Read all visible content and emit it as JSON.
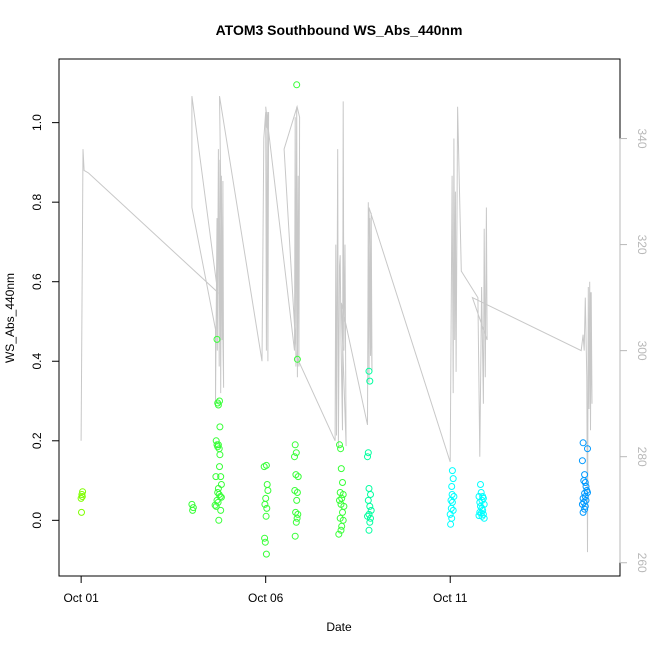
{
  "chart_data": {
    "type": "scatter",
    "title": "ATOM3 Southbound WS_Abs_440nm",
    "xlabel": "Date",
    "ylabel": "WS_Abs_440nm",
    "x_axis": {
      "unit": "days since Oct 01",
      "range": [
        -0.6,
        14.6
      ],
      "ticks": [
        {
          "value": 0,
          "label": "Oct 01"
        },
        {
          "value": 5,
          "label": "Oct 06"
        },
        {
          "value": 10,
          "label": "Oct 11"
        }
      ]
    },
    "y_axis": {
      "range": [
        -0.14,
        1.16
      ],
      "ticks": [
        {
          "value": 0.0,
          "label": "0.0"
        },
        {
          "value": 0.2,
          "label": "0.2"
        },
        {
          "value": 0.4,
          "label": "0.4"
        },
        {
          "value": 0.6,
          "label": "0.6"
        },
        {
          "value": 0.8,
          "label": "0.8"
        },
        {
          "value": 1.0,
          "label": "1.0"
        }
      ]
    },
    "y2_axis": {
      "range": [
        257.5,
        355
      ],
      "ticks": [
        {
          "value": 260,
          "label": "260"
        },
        {
          "value": 280,
          "label": "280"
        },
        {
          "value": 300,
          "label": "300"
        },
        {
          "value": 320,
          "label": "320"
        },
        {
          "value": 340,
          "label": "340"
        }
      ]
    },
    "grid": false,
    "legend": "none",
    "colors": {
      "line": "#c8c8c8",
      "secondary_axis": "#b8b8b8",
      "text": "#000000"
    },
    "series": [
      {
        "type": "scatter",
        "colors": [
          "#7fff00",
          "#38ff38",
          "#00ff9f",
          "#00ffff",
          "#0099ff"
        ],
        "points": [
          [
            0.0,
            0.055,
            0
          ],
          [
            0.02,
            0.065,
            0
          ],
          [
            0.04,
            0.072,
            0
          ],
          [
            0.01,
            0.02,
            0
          ],
          [
            0.03,
            0.06,
            0
          ],
          [
            3.0,
            0.04,
            1
          ],
          [
            3.02,
            0.025,
            1
          ],
          [
            3.04,
            0.032,
            1
          ],
          [
            3.68,
            0.455,
            1
          ],
          [
            3.7,
            0.295,
            1
          ],
          [
            3.72,
            0.29,
            1
          ],
          [
            3.75,
            0.3,
            1
          ],
          [
            3.76,
            0.235,
            1
          ],
          [
            3.66,
            0.2,
            1
          ],
          [
            3.68,
            0.19,
            1
          ],
          [
            3.7,
            0.185,
            1
          ],
          [
            3.72,
            0.19,
            1
          ],
          [
            3.74,
            0.18,
            1
          ],
          [
            3.76,
            0.165,
            1
          ],
          [
            3.75,
            0.135,
            1
          ],
          [
            3.78,
            0.11,
            1
          ],
          [
            3.65,
            0.11,
            1
          ],
          [
            3.8,
            0.09,
            1
          ],
          [
            3.72,
            0.08,
            1
          ],
          [
            3.7,
            0.07,
            1
          ],
          [
            3.74,
            0.065,
            1
          ],
          [
            3.77,
            0.06,
            1
          ],
          [
            3.8,
            0.058,
            1
          ],
          [
            3.68,
            0.05,
            1
          ],
          [
            3.71,
            0.045,
            1
          ],
          [
            3.63,
            0.038,
            1
          ],
          [
            3.66,
            0.035,
            1
          ],
          [
            3.78,
            0.025,
            1
          ],
          [
            3.73,
            0.0,
            1
          ],
          [
            4.96,
            0.135,
            1
          ],
          [
            5.02,
            0.138,
            1
          ],
          [
            5.04,
            0.09,
            1
          ],
          [
            5.06,
            0.075,
            1
          ],
          [
            5.0,
            0.055,
            1
          ],
          [
            4.98,
            0.04,
            1
          ],
          [
            5.03,
            0.03,
            1
          ],
          [
            5.01,
            0.01,
            1
          ],
          [
            4.97,
            -0.045,
            1
          ],
          [
            4.99,
            -0.055,
            1
          ],
          [
            5.02,
            -0.085,
            1
          ],
          [
            5.84,
            1.095,
            1
          ],
          [
            5.86,
            0.405,
            1
          ],
          [
            5.8,
            0.19,
            1
          ],
          [
            5.83,
            0.17,
            1
          ],
          [
            5.78,
            0.16,
            1
          ],
          [
            5.82,
            0.115,
            1
          ],
          [
            5.88,
            0.11,
            1
          ],
          [
            5.79,
            0.075,
            1
          ],
          [
            5.86,
            0.07,
            1
          ],
          [
            5.84,
            0.05,
            1
          ],
          [
            5.81,
            0.02,
            1
          ],
          [
            5.87,
            0.015,
            1
          ],
          [
            5.85,
            0.005,
            1
          ],
          [
            5.83,
            -0.005,
            1
          ],
          [
            5.8,
            -0.04,
            1
          ],
          [
            7.0,
            0.19,
            1
          ],
          [
            7.03,
            0.18,
            1
          ],
          [
            7.05,
            0.13,
            1
          ],
          [
            7.08,
            0.095,
            1
          ],
          [
            7.02,
            0.07,
            1
          ],
          [
            7.1,
            0.065,
            1
          ],
          [
            7.06,
            0.055,
            1
          ],
          [
            7.0,
            0.05,
            1
          ],
          [
            7.04,
            0.04,
            1
          ],
          [
            7.12,
            0.035,
            1
          ],
          [
            7.08,
            0.02,
            1
          ],
          [
            7.02,
            0.005,
            1
          ],
          [
            7.1,
            0.0,
            1
          ],
          [
            7.06,
            -0.015,
            1
          ],
          [
            7.04,
            -0.025,
            1
          ],
          [
            6.98,
            -0.035,
            1
          ],
          [
            7.8,
            0.375,
            2
          ],
          [
            7.82,
            0.35,
            2
          ],
          [
            7.78,
            0.17,
            2
          ],
          [
            7.76,
            0.16,
            2
          ],
          [
            7.8,
            0.08,
            2
          ],
          [
            7.84,
            0.065,
            2
          ],
          [
            7.78,
            0.05,
            2
          ],
          [
            7.82,
            0.035,
            2
          ],
          [
            7.86,
            0.025,
            2
          ],
          [
            7.8,
            0.015,
            2
          ],
          [
            7.76,
            0.01,
            2
          ],
          [
            7.84,
            0.005,
            2
          ],
          [
            7.82,
            -0.005,
            2
          ],
          [
            7.8,
            -0.025,
            2
          ],
          [
            10.06,
            0.125,
            3
          ],
          [
            10.08,
            0.105,
            3
          ],
          [
            10.04,
            0.085,
            3
          ],
          [
            10.05,
            0.065,
            3
          ],
          [
            10.1,
            0.06,
            3
          ],
          [
            10.02,
            0.05,
            3
          ],
          [
            10.06,
            0.045,
            3
          ],
          [
            10.03,
            0.03,
            3
          ],
          [
            10.08,
            0.025,
            3
          ],
          [
            10.0,
            0.015,
            3
          ],
          [
            10.04,
            0.005,
            3
          ],
          [
            10.01,
            -0.01,
            3
          ],
          [
            10.82,
            0.09,
            3
          ],
          [
            10.84,
            0.07,
            3
          ],
          [
            10.78,
            0.06,
            3
          ],
          [
            10.88,
            0.06,
            3
          ],
          [
            10.9,
            0.055,
            3
          ],
          [
            10.86,
            0.05,
            3
          ],
          [
            10.8,
            0.045,
            3
          ],
          [
            10.92,
            0.04,
            3
          ],
          [
            10.82,
            0.035,
            3
          ],
          [
            10.86,
            0.03,
            3
          ],
          [
            10.88,
            0.025,
            3
          ],
          [
            10.8,
            0.02,
            3
          ],
          [
            10.84,
            0.018,
            3
          ],
          [
            10.9,
            0.015,
            3
          ],
          [
            10.78,
            0.012,
            3
          ],
          [
            10.86,
            0.01,
            3
          ],
          [
            10.92,
            0.005,
            3
          ],
          [
            13.6,
            0.195,
            4
          ],
          [
            13.72,
            0.18,
            4
          ],
          [
            13.58,
            0.15,
            4
          ],
          [
            13.64,
            0.115,
            4
          ],
          [
            13.62,
            0.1,
            4
          ],
          [
            13.66,
            0.095,
            4
          ],
          [
            13.68,
            0.085,
            4
          ],
          [
            13.7,
            0.075,
            4
          ],
          [
            13.72,
            0.07,
            4
          ],
          [
            13.64,
            0.068,
            4
          ],
          [
            13.66,
            0.06,
            4
          ],
          [
            13.6,
            0.055,
            4
          ],
          [
            13.68,
            0.05,
            4
          ],
          [
            13.62,
            0.045,
            4
          ],
          [
            13.58,
            0.04,
            4
          ],
          [
            13.66,
            0.035,
            4
          ],
          [
            13.64,
            0.028,
            4
          ],
          [
            13.6,
            0.02,
            4
          ]
        ]
      },
      {
        "type": "line",
        "axis": "right",
        "points": [
          [
            0.0,
            283
          ],
          [
            0.05,
            338
          ],
          [
            0.08,
            334
          ],
          [
            0.2,
            333.5
          ],
          [
            3.7,
            311
          ],
          [
            3.0,
            348
          ],
          [
            3.0,
            327
          ],
          [
            3.64,
            304
          ],
          [
            3.64,
            290
          ],
          [
            3.68,
            325
          ],
          [
            3.69,
            300
          ],
          [
            3.72,
            338
          ],
          [
            3.74,
            297
          ],
          [
            3.76,
            336
          ],
          [
            3.78,
            292
          ],
          [
            3.8,
            333
          ],
          [
            3.82,
            302
          ],
          [
            3.84,
            332
          ],
          [
            3.86,
            293
          ],
          [
            3.75,
            348
          ],
          [
            4.9,
            298
          ],
          [
            4.95,
            340
          ],
          [
            5.0,
            345
          ],
          [
            5.02,
            300
          ],
          [
            5.04,
            345
          ],
          [
            5.06,
            298
          ],
          [
            5.08,
            345
          ],
          [
            5.03,
            342
          ],
          [
            5.0,
            346
          ],
          [
            5.78,
            300
          ],
          [
            5.8,
            344
          ],
          [
            5.82,
            297
          ],
          [
            5.84,
            346
          ],
          [
            5.86,
            295
          ],
          [
            5.88,
            333
          ],
          [
            5.9,
            297
          ],
          [
            5.92,
            344
          ],
          [
            5.85,
            346
          ],
          [
            5.5,
            338
          ],
          [
            5.83,
            299
          ],
          [
            6.88,
            283
          ],
          [
            6.9,
            320
          ],
          [
            6.92,
            284
          ],
          [
            6.95,
            338
          ],
          [
            6.97,
            282
          ],
          [
            7.0,
            316
          ],
          [
            7.02,
            318
          ],
          [
            7.04,
            302
          ],
          [
            7.08,
            285
          ],
          [
            7.1,
            347
          ],
          [
            7.12,
            300
          ],
          [
            7.15,
            320
          ],
          [
            7.18,
            282
          ],
          [
            7.05,
            309
          ],
          [
            7.76,
            286
          ],
          [
            7.78,
            328
          ],
          [
            7.8,
            294
          ],
          [
            7.82,
            325
          ],
          [
            7.84,
            299
          ],
          [
            7.86,
            326
          ],
          [
            7.88,
            296
          ],
          [
            7.8,
            327
          ],
          [
            7.84,
            310
          ],
          [
            7.8,
            327
          ],
          [
            10.0,
            279
          ],
          [
            10.05,
            333
          ],
          [
            10.08,
            292
          ],
          [
            10.1,
            340
          ],
          [
            10.12,
            302
          ],
          [
            10.14,
            330
          ],
          [
            10.16,
            296
          ],
          [
            10.2,
            346
          ],
          [
            10.3,
            315
          ],
          [
            10.75,
            310
          ],
          [
            10.8,
            280
          ],
          [
            10.85,
            312
          ],
          [
            10.9,
            290
          ],
          [
            10.92,
            323
          ],
          [
            10.95,
            295
          ],
          [
            10.98,
            327
          ],
          [
            11.0,
            302
          ],
          [
            10.6,
            310
          ],
          [
            13.55,
            300
          ],
          [
            13.6,
            303
          ],
          [
            13.63,
            300
          ],
          [
            13.66,
            310
          ],
          [
            13.7,
            295
          ],
          [
            13.72,
            262
          ],
          [
            13.74,
            312
          ],
          [
            13.76,
            289
          ],
          [
            13.78,
            313
          ],
          [
            13.8,
            285
          ],
          [
            13.82,
            311
          ],
          [
            13.84,
            290
          ],
          [
            13.8,
            311
          ]
        ]
      }
    ]
  }
}
